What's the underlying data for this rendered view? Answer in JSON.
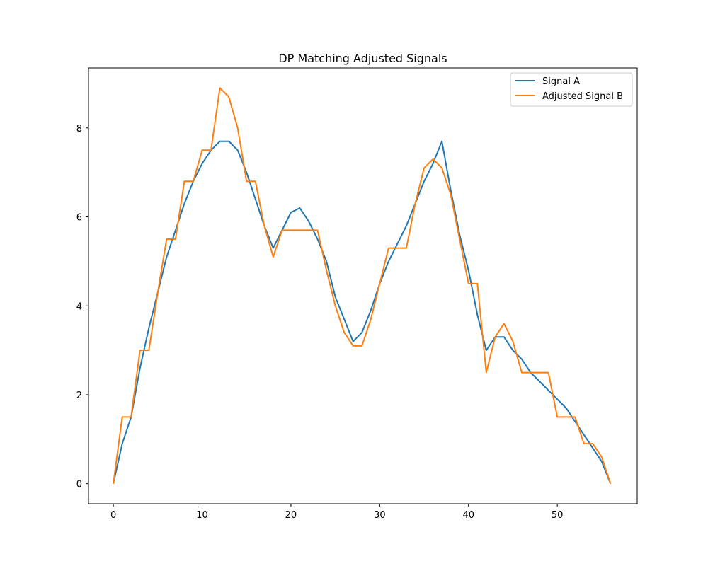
{
  "chart_data": {
    "type": "line",
    "title": "DP Matching Adjusted Signals",
    "xlabel": "",
    "ylabel": "",
    "xlim": [
      -2.8,
      59.0
    ],
    "ylim": [
      -0.45,
      9.35
    ],
    "xticks": [
      0,
      10,
      20,
      30,
      40,
      50
    ],
    "yticks": [
      0,
      2,
      4,
      6,
      8
    ],
    "grid": false,
    "legend_position": "upper right",
    "series": [
      {
        "name": "Signal A",
        "color": "#1f77b4",
        "x": [
          0,
          1,
          2,
          3,
          4,
          5,
          6,
          7,
          8,
          9,
          10,
          11,
          12,
          13,
          14,
          15,
          16,
          17,
          18,
          19,
          20,
          21,
          22,
          23,
          24,
          25,
          26,
          27,
          28,
          29,
          30,
          31,
          32,
          33,
          34,
          35,
          36,
          37,
          38,
          39,
          40,
          41,
          42,
          43,
          44,
          45,
          46,
          47,
          48,
          49,
          50,
          51,
          52,
          53,
          54,
          55,
          56
        ],
        "values": [
          0,
          0.9,
          1.5,
          2.6,
          3.5,
          4.3,
          5.1,
          5.7,
          6.3,
          6.8,
          7.2,
          7.5,
          7.7,
          7.7,
          7.5,
          7.0,
          6.4,
          5.8,
          5.3,
          5.7,
          6.1,
          6.2,
          5.9,
          5.5,
          5.0,
          4.2,
          3.7,
          3.2,
          3.4,
          3.9,
          4.5,
          5.0,
          5.4,
          5.8,
          6.3,
          6.8,
          7.2,
          7.7,
          6.6,
          5.6,
          4.8,
          3.8,
          3.0,
          3.3,
          3.3,
          3.0,
          2.8,
          2.5,
          2.3,
          2.1,
          1.9,
          1.7,
          1.4,
          1.1,
          0.8,
          0.5,
          0
        ]
      },
      {
        "name": "Adjusted Signal B",
        "color": "#ff7f0e",
        "x": [
          0,
          1,
          2,
          3,
          4,
          5,
          6,
          7,
          8,
          9,
          10,
          11,
          12,
          13,
          14,
          15,
          16,
          17,
          18,
          19,
          20,
          21,
          22,
          23,
          24,
          25,
          26,
          27,
          28,
          29,
          30,
          31,
          32,
          33,
          34,
          35,
          36,
          37,
          38,
          39,
          40,
          41,
          42,
          43,
          44,
          45,
          46,
          47,
          48,
          49,
          50,
          51,
          52,
          53,
          54,
          55,
          56
        ],
        "values": [
          0,
          1.5,
          1.5,
          3.0,
          3.0,
          4.3,
          5.5,
          5.5,
          6.8,
          6.8,
          7.5,
          7.5,
          8.9,
          8.7,
          8.0,
          6.8,
          6.8,
          5.8,
          5.1,
          5.7,
          5.7,
          5.7,
          5.7,
          5.7,
          4.8,
          4.0,
          3.4,
          3.1,
          3.1,
          3.7,
          4.5,
          5.3,
          5.3,
          5.3,
          6.3,
          7.1,
          7.3,
          7.1,
          6.5,
          5.5,
          4.5,
          4.5,
          2.5,
          3.3,
          3.6,
          3.2,
          2.5,
          2.5,
          2.5,
          2.5,
          1.5,
          1.5,
          1.5,
          0.9,
          0.9,
          0.6,
          0
        ]
      }
    ]
  }
}
